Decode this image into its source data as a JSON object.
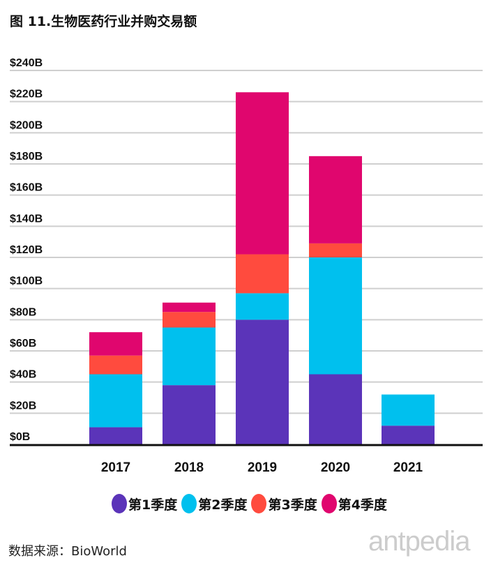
{
  "title": "图 11.生物医药行业并购交易额",
  "source": "数据来源：BioWorld",
  "watermark": "antpedia",
  "chart_data": {
    "type": "bar",
    "stacked": true,
    "title": "图 11.生物医药行业并购交易额",
    "categories": [
      "2017",
      "2018",
      "2019",
      "2020",
      "2021"
    ],
    "series": [
      {
        "name": "第1季度",
        "color": "#5b34b9",
        "values": [
          11,
          38,
          80,
          45,
          12
        ]
      },
      {
        "name": "第2季度",
        "color": "#00c0ee",
        "values": [
          34,
          37,
          17,
          75,
          20
        ]
      },
      {
        "name": "第3季度",
        "color": "#ff4b3e",
        "values": [
          12,
          10,
          25,
          9,
          0
        ]
      },
      {
        "name": "第4季度",
        "color": "#e0066e",
        "values": [
          15,
          6,
          104,
          56,
          0
        ]
      }
    ],
    "ylim": [
      0,
      240
    ],
    "yticks": [
      "$0B",
      "$20B",
      "$40B",
      "$60B",
      "$80B",
      "$100B",
      "$120B",
      "$140B",
      "$160B",
      "$180B",
      "$200B",
      "$220B",
      "$240B"
    ],
    "grid": true,
    "legend": "bottom"
  }
}
